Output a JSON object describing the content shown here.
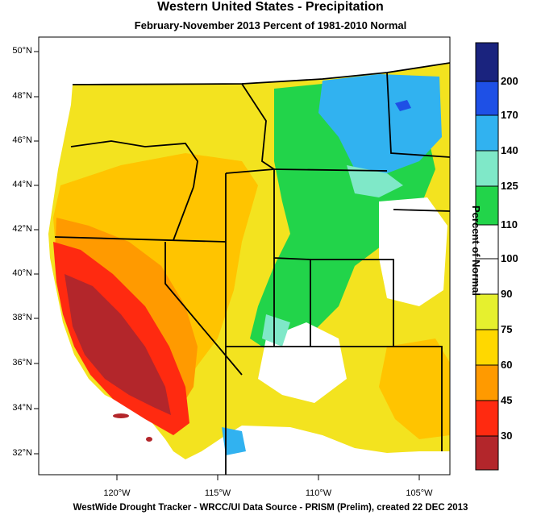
{
  "title": "Western United States - Precipitation",
  "subtitle": "February-November 2013  Percent of 1981-2010 Normal",
  "footer": "WestWide Drought Tracker - WRCC/UI  Data Source - PRISM (Prelim), created 22 DEC 2013",
  "lat_labels": [
    "50°N",
    "48°N",
    "46°N",
    "44°N",
    "42°N",
    "40°N",
    "38°N",
    "36°N",
    "34°N",
    "32°N"
  ],
  "lon_labels": [
    "120°W",
    "115°W",
    "110°W",
    "105°W"
  ],
  "legend": {
    "title": "Percent of Normal",
    "tick_labels": [
      "200",
      "170",
      "140",
      "125",
      "110",
      "100",
      "90",
      "75",
      "60",
      "45",
      "30"
    ],
    "colors": [
      "#1a237e",
      "#1e50e6",
      "#31b2f0",
      "#7fe8c8",
      "#22d44a",
      "#ffffff",
      "#ffffff",
      "#e6f02e",
      "#ffd800",
      "#ff9a00",
      "#ff2a10",
      "#b3262b"
    ]
  },
  "colors": {
    "land_base": "#f3e31f",
    "ocean": "#ffffff"
  }
}
